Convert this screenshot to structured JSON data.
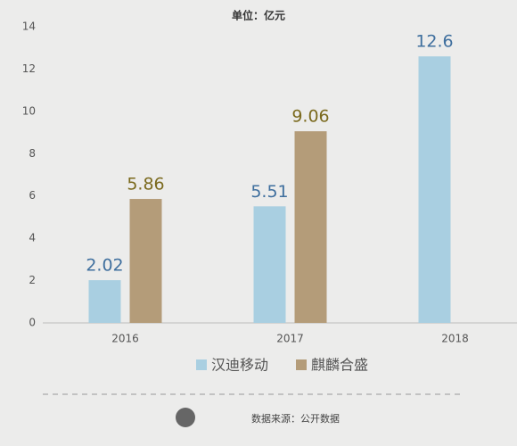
{
  "chart_data": {
    "type": "bar",
    "title": "单位：亿元",
    "categories": [
      "2016",
      "2017",
      "2018"
    ],
    "series": [
      {
        "name": "汉迪移动",
        "color": "#a9cfe1",
        "label_color": "#3f6f9e",
        "values": [
          2.02,
          5.51,
          12.6
        ]
      },
      {
        "name": "麒麟合盛",
        "color": "#b49c79",
        "label_color": "#7b6a1e",
        "values": [
          5.86,
          9.06,
          null
        ]
      }
    ],
    "ylim": [
      0,
      14
    ],
    "yticks": [
      0,
      2,
      4,
      6,
      8,
      10,
      12,
      14
    ],
    "grid": false,
    "legend": "bottom",
    "source": "数据来源：公开数据"
  }
}
